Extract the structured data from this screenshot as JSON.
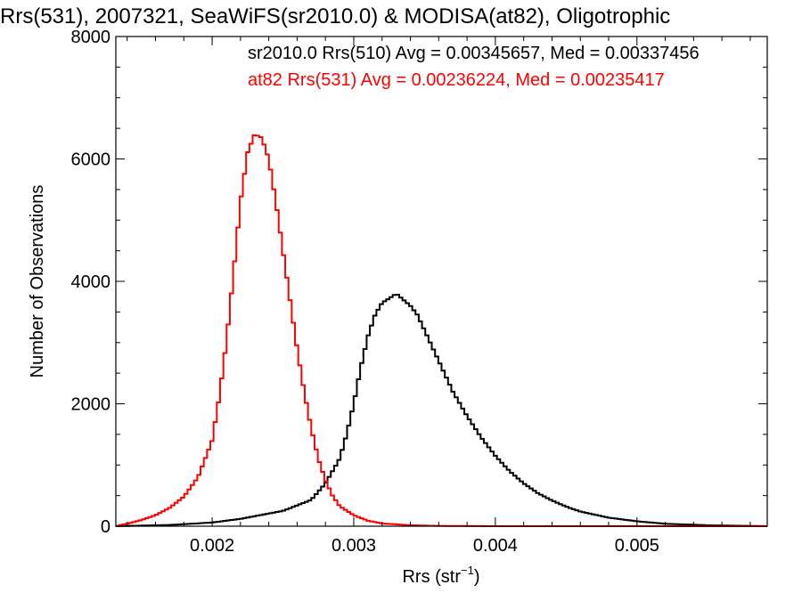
{
  "chart_data": {
    "type": "line",
    "title": "Rrs(531), 2007321, SeaWiFS(sr2010.0) & MODISA(at82), Oligotrophic",
    "xlabel_main": "Rrs (str",
    "xlabel_sup": "−1",
    "xlabel_close": ")",
    "ylabel": "Number of Observations",
    "xlim": [
      0.00132,
      0.00592
    ],
    "ylim": [
      0,
      8000
    ],
    "x_ticks": [
      0.002,
      0.003,
      0.004,
      0.005
    ],
    "x_tick_labels": [
      "0.002",
      "0.003",
      "0.004",
      "0.005"
    ],
    "y_ticks": [
      0,
      2000,
      4000,
      6000,
      8000
    ],
    "y_tick_labels": [
      "0",
      "2000",
      "4000",
      "6000",
      "8000"
    ],
    "grid": false,
    "legend_placement": "top-right",
    "series": [
      {
        "name": "sr2010.0 Rrs(510)",
        "legend": "sr2010.0 Rrs(510) Avg = 0.00345657, Med = 0.00337456",
        "color": "#000000",
        "x": [
          0.00132,
          0.0017,
          0.002,
          0.0022,
          0.0025,
          0.0027,
          0.0028,
          0.0029,
          0.00295,
          0.003,
          0.00305,
          0.0031,
          0.00315,
          0.0032,
          0.00325,
          0.0033,
          0.00335,
          0.0034,
          0.00345,
          0.0035,
          0.00355,
          0.0036,
          0.00365,
          0.0037,
          0.0038,
          0.0039,
          0.004,
          0.0041,
          0.0042,
          0.0043,
          0.0044,
          0.0045,
          0.0046,
          0.0048,
          0.005,
          0.0052,
          0.0055,
          0.00592
        ],
        "y": [
          0,
          20,
          60,
          120,
          250,
          430,
          700,
          1100,
          1500,
          2000,
          2600,
          3100,
          3450,
          3650,
          3720,
          3800,
          3700,
          3600,
          3450,
          3200,
          2950,
          2700,
          2450,
          2200,
          1800,
          1450,
          1150,
          900,
          700,
          540,
          420,
          320,
          240,
          140,
          80,
          40,
          15,
          0
        ]
      },
      {
        "name": "at82 Rrs(531)",
        "legend": "at82 Rrs(531) Avg = 0.00236224, Med = 0.00235417",
        "color": "#ff0000",
        "x": [
          0.00132,
          0.0014,
          0.0015,
          0.0016,
          0.0017,
          0.0018,
          0.0019,
          0.002,
          0.00205,
          0.0021,
          0.00215,
          0.0022,
          0.00225,
          0.0023,
          0.00235,
          0.0024,
          0.00245,
          0.0025,
          0.00255,
          0.0026,
          0.00265,
          0.0027,
          0.00275,
          0.0028,
          0.00285,
          0.0029,
          0.003,
          0.0031,
          0.0032,
          0.0034,
          0.0036,
          0.004,
          0.00592
        ],
        "y": [
          0,
          40,
          100,
          180,
          300,
          480,
          800,
          1400,
          2100,
          3000,
          4100,
          5300,
          6100,
          6400,
          6350,
          6000,
          5300,
          4500,
          3700,
          2900,
          2200,
          1600,
          1100,
          750,
          500,
          330,
          180,
          90,
          45,
          15,
          5,
          0,
          0
        ]
      }
    ]
  }
}
